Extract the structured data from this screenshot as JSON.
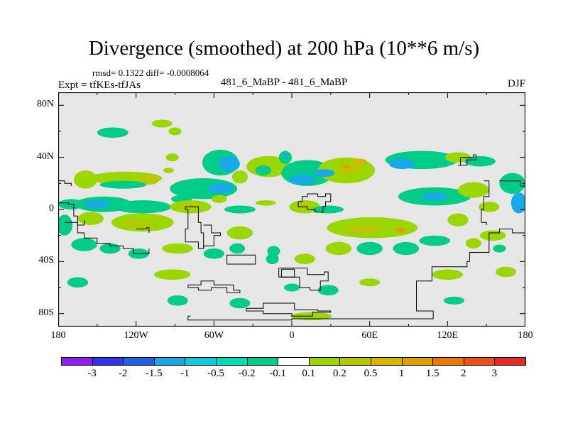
{
  "title": "Divergence (smoothed) at 200 hPa (10**6 m/s)",
  "stats": "rmsd= 0.1322 diff= -0.0008064",
  "expt": "Expt = tfKEs-tfJAs",
  "runs": "481_6_MaBP - 481_6_MaBP",
  "season": "DJF",
  "map": {
    "projection": "cylindrical equidistant",
    "lon_range": [
      -180,
      180
    ],
    "lat_range": [
      -90,
      90
    ],
    "background_color": "#e6e6e6",
    "coastline_color": "#000000",
    "y_ticks": [
      {
        "lat": 80,
        "label": "80N"
      },
      {
        "lat": 40,
        "label": "40N"
      },
      {
        "lat": 0,
        "label": "0"
      },
      {
        "lat": -40,
        "label": "40S"
      },
      {
        "lat": -80,
        "label": "80S"
      }
    ],
    "x_ticks": [
      {
        "lon": -180,
        "label": "180"
      },
      {
        "lon": -120,
        "label": "120W"
      },
      {
        "lon": -60,
        "label": "60W"
      },
      {
        "lon": 0,
        "label": "0"
      },
      {
        "lon": 60,
        "label": "60E"
      },
      {
        "lon": 120,
        "label": "120E"
      },
      {
        "lon": 180,
        "label": "180"
      }
    ],
    "blobs": [
      {
        "lon": -159,
        "lat": 23,
        "rlon": 9,
        "rlat": 7,
        "color": "#9bd600"
      },
      {
        "lon": -128,
        "lat": 24,
        "rlon": 28,
        "rlat": 5,
        "color": "#9bd600"
      },
      {
        "lon": -110,
        "lat": 23,
        "rlon": 8,
        "rlat": 4,
        "color": "#b8c800"
      },
      {
        "lon": -92,
        "lat": 40,
        "rlon": 5,
        "rlat": 3,
        "color": "#9bd600"
      },
      {
        "lon": -130,
        "lat": 19,
        "rlon": 18,
        "rlat": 3,
        "color": "#00cc88"
      },
      {
        "lon": -138,
        "lat": 59,
        "rlon": 12,
        "rlat": 4,
        "color": "#00cc88"
      },
      {
        "lon": -100,
        "lat": 66,
        "rlon": 8,
        "rlat": 3,
        "color": "#9bd600"
      },
      {
        "lon": -90,
        "lat": 60,
        "rlon": 5,
        "rlat": 3,
        "color": "#9bd600"
      },
      {
        "lon": -95,
        "lat": 30,
        "rlon": 4,
        "rlat": 2,
        "color": "#9bd600"
      },
      {
        "lon": -55,
        "lat": 36,
        "rlon": 14,
        "rlat": 10,
        "color": "#00cc88"
      },
      {
        "lon": -48,
        "lat": 35,
        "rlon": 8,
        "rlat": 6,
        "color": "#19a8e8"
      },
      {
        "lon": -68,
        "lat": 16,
        "rlon": 26,
        "rlat": 8,
        "color": "#00cc88"
      },
      {
        "lon": -55,
        "lat": 16,
        "rlon": 10,
        "rlat": 4,
        "color": "#19a8e8"
      },
      {
        "lon": -40,
        "lat": 25,
        "rlon": 6,
        "rlat": 5,
        "color": "#9bd600"
      },
      {
        "lon": -56,
        "lat": 8,
        "rlon": 6,
        "rlat": 3,
        "color": "#9bd600"
      },
      {
        "lon": -18,
        "lat": 33,
        "rlon": 17,
        "rlat": 8,
        "color": "#9bd600"
      },
      {
        "lon": -22,
        "lat": 30,
        "rlon": 6,
        "rlat": 4,
        "color": "#00cc88"
      },
      {
        "lon": -5,
        "lat": 40,
        "rlon": 5,
        "rlat": 5,
        "color": "#00cc88"
      },
      {
        "lon": -5,
        "lat": 41,
        "rlon": 2,
        "rlat": 2,
        "color": "#19a8e8"
      },
      {
        "lon": 12,
        "lat": 28,
        "rlon": 20,
        "rlat": 10,
        "color": "#00cc88"
      },
      {
        "lon": 8,
        "lat": 23,
        "rlon": 10,
        "rlat": 4,
        "color": "#19a8e8"
      },
      {
        "lon": 42,
        "lat": 30,
        "rlon": 22,
        "rlat": 10,
        "color": "#9bd600"
      },
      {
        "lon": 44,
        "lat": 31,
        "rlon": 10,
        "rlat": 4,
        "color": "#b8c800"
      },
      {
        "lon": 52,
        "lat": 37,
        "rlon": 6,
        "rlat": 2,
        "color": "#d4b800"
      },
      {
        "lon": 42,
        "lat": 33,
        "rlon": 3,
        "rlat": 1.5,
        "color": "#e0a000"
      },
      {
        "lon": 100,
        "lat": 38,
        "rlon": 28,
        "rlat": 7,
        "color": "#00cc88"
      },
      {
        "lon": 85,
        "lat": 35,
        "rlon": 10,
        "rlat": 4,
        "color": "#19a8e8"
      },
      {
        "lon": 128,
        "lat": 40,
        "rlon": 10,
        "rlat": 4,
        "color": "#9bd600"
      },
      {
        "lon": 145,
        "lat": 37,
        "rlon": 12,
        "rlat": 4,
        "color": "#00cc88"
      },
      {
        "lon": 110,
        "lat": 10,
        "rlon": 28,
        "rlat": 7,
        "color": "#00cc88"
      },
      {
        "lon": 110,
        "lat": 10,
        "rlon": 10,
        "rlat": 3,
        "color": "#19a8e8"
      },
      {
        "lon": 140,
        "lat": 15,
        "rlon": 12,
        "rlat": 6,
        "color": "#9bd600"
      },
      {
        "lon": 152,
        "lat": 2,
        "rlon": 8,
        "rlat": 4,
        "color": "#9bd600"
      },
      {
        "lon": 170,
        "lat": 20,
        "rlon": 10,
        "rlat": 8,
        "color": "#00cc88"
      },
      {
        "lon": 175,
        "lat": 5,
        "rlon": 6,
        "rlat": 8,
        "color": "#19a8e8"
      },
      {
        "lon": -170,
        "lat": 4,
        "rlon": 10,
        "rlat": 4,
        "color": "#00cc88"
      },
      {
        "lon": -145,
        "lat": 4,
        "rlon": 22,
        "rlat": 6,
        "color": "#00cc88"
      },
      {
        "lon": -150,
        "lat": 4,
        "rlon": 10,
        "rlat": 3,
        "color": "#19a8e8"
      },
      {
        "lon": -115,
        "lat": 2,
        "rlon": 22,
        "rlat": 5,
        "color": "#00cc88"
      },
      {
        "lon": -85,
        "lat": 8,
        "rlon": 8,
        "rlat": 3,
        "color": "#00cc88"
      },
      {
        "lon": -155,
        "lat": -7,
        "rlon": 10,
        "rlat": 5,
        "color": "#9bd600"
      },
      {
        "lon": -115,
        "lat": -10,
        "rlon": 24,
        "rlat": 7,
        "color": "#9bd600"
      },
      {
        "lon": -118,
        "lat": -11,
        "rlon": 12,
        "rlat": 3,
        "color": "#b8c800"
      },
      {
        "lon": -78,
        "lat": 2,
        "rlon": 16,
        "rlat": 5,
        "color": "#9bd600"
      },
      {
        "lon": -80,
        "lat": 3,
        "rlon": 8,
        "rlat": 2.5,
        "color": "#b8c800"
      },
      {
        "lon": -40,
        "lat": 0,
        "rlon": 12,
        "rlat": 3,
        "color": "#00cc88"
      },
      {
        "lon": -20,
        "lat": 5,
        "rlon": 8,
        "rlat": 2,
        "color": "#9bd600"
      },
      {
        "lon": 10,
        "lat": 2,
        "rlon": 12,
        "rlat": 5,
        "color": "#9bd600"
      },
      {
        "lon": 8,
        "lat": 3,
        "rlon": 6,
        "rlat": 2,
        "color": "#b8c800"
      },
      {
        "lon": 28,
        "lat": 0,
        "rlon": 12,
        "rlat": 3,
        "color": "#00cc88"
      },
      {
        "lon": 62,
        "lat": -14,
        "rlon": 35,
        "rlat": 8,
        "color": "#9bd600"
      },
      {
        "lon": 55,
        "lat": -15,
        "rlon": 14,
        "rlat": 3.5,
        "color": "#b8c800"
      },
      {
        "lon": 84,
        "lat": -16,
        "rlon": 4,
        "rlat": 2,
        "color": "#e0a000"
      },
      {
        "lon": 60,
        "lat": -30,
        "rlon": 10,
        "rlat": 5,
        "color": "#00cc88"
      },
      {
        "lon": 88,
        "lat": -30,
        "rlon": 10,
        "rlat": 5,
        "color": "#00cc88"
      },
      {
        "lon": 110,
        "lat": -24,
        "rlon": 12,
        "rlat": 4,
        "color": "#00cc88"
      },
      {
        "lon": 128,
        "lat": -8,
        "rlon": 8,
        "rlat": 5,
        "color": "#9bd600"
      },
      {
        "lon": 140,
        "lat": -26,
        "rlon": 6,
        "rlat": 4,
        "color": "#9bd600"
      },
      {
        "lon": 155,
        "lat": -20,
        "rlon": 10,
        "rlat": 4,
        "color": "#9bd600"
      },
      {
        "lon": 160,
        "lat": -30,
        "rlon": 5,
        "rlat": 3,
        "color": "#00cc88"
      },
      {
        "lon": 36,
        "lat": -30,
        "rlon": 10,
        "rlat": 5,
        "color": "#9bd600"
      },
      {
        "lon": 10,
        "lat": -38,
        "rlon": 8,
        "rlat": 4,
        "color": "#9bd600"
      },
      {
        "lon": -14,
        "lat": -32,
        "rlon": 5,
        "rlat": 4,
        "color": "#00cc88"
      },
      {
        "lon": -15,
        "lat": -38,
        "rlon": 5,
        "rlat": 4,
        "color": "#00cc88"
      },
      {
        "lon": -40,
        "lat": -18,
        "rlon": 10,
        "rlat": 5,
        "color": "#9bd600"
      },
      {
        "lon": -42,
        "lat": -30,
        "rlon": 6,
        "rlat": 4,
        "color": "#00cc88"
      },
      {
        "lon": -60,
        "lat": -34,
        "rlon": 8,
        "rlat": 4,
        "color": "#00cc88"
      },
      {
        "lon": -88,
        "lat": -30,
        "rlon": 12,
        "rlat": 4,
        "color": "#9bd600"
      },
      {
        "lon": -118,
        "lat": -34,
        "rlon": 8,
        "rlat": 4,
        "color": "#00cc88"
      },
      {
        "lon": -140,
        "lat": -30,
        "rlon": 8,
        "rlat": 4,
        "color": "#00cc88"
      },
      {
        "lon": -160,
        "lat": -27,
        "rlon": 10,
        "rlat": 5,
        "color": "#00cc88"
      },
      {
        "lon": -175,
        "lat": -12,
        "rlon": 6,
        "rlat": 8,
        "color": "#00cc88"
      },
      {
        "lon": -92,
        "lat": -50,
        "rlon": 14,
        "rlat": 4,
        "color": "#9bd600"
      },
      {
        "lon": -88,
        "lat": -70,
        "rlon": 8,
        "rlat": 4,
        "color": "#00cc88"
      },
      {
        "lon": -40,
        "lat": -72,
        "rlon": 8,
        "rlat": 4,
        "color": "#00cc88"
      },
      {
        "lon": 0,
        "lat": -60,
        "rlon": 6,
        "rlat": 3,
        "color": "#00cc88"
      },
      {
        "lon": 28,
        "lat": -62,
        "rlon": 8,
        "rlat": 4,
        "color": "#00cc88"
      },
      {
        "lon": 60,
        "lat": -56,
        "rlon": 8,
        "rlat": 3,
        "color": "#9bd600"
      },
      {
        "lon": 120,
        "lat": -50,
        "rlon": 12,
        "rlat": 4,
        "color": "#9bd600"
      },
      {
        "lon": 165,
        "lat": -48,
        "rlon": 8,
        "rlat": 4,
        "color": "#9bd600"
      },
      {
        "lon": 125,
        "lat": -70,
        "rlon": 8,
        "rlat": 3,
        "color": "#00cc88"
      },
      {
        "lon": 15,
        "lat": -82,
        "rlon": 16,
        "rlat": 3,
        "color": "#9bd600"
      },
      {
        "lon": -165,
        "lat": -56,
        "rlon": 8,
        "rlat": 4,
        "color": "#00cc88"
      },
      {
        "lon": -110,
        "lat": -8,
        "rlon": 6,
        "rlat": 2,
        "color": "#9bd600"
      },
      {
        "lon": 25,
        "lat": 28,
        "rlon": 8,
        "rlat": 3,
        "color": "#19a8e8"
      }
    ],
    "coastlines": [
      [
        [
          -180,
          5
        ],
        [
          -172,
          4
        ],
        [
          -168,
          -5
        ],
        [
          -165,
          -18
        ],
        [
          -160,
          -22
        ],
        [
          -150,
          -26
        ],
        [
          -140,
          -28
        ],
        [
          -130,
          -30
        ],
        [
          -122,
          -34
        ],
        [
          -110,
          -30
        ]
      ],
      [
        [
          -82,
          0
        ],
        [
          -80,
          -15
        ],
        [
          -82,
          -25
        ],
        [
          -72,
          -30
        ],
        [
          -68,
          -30
        ],
        [
          -68,
          -18
        ],
        [
          -70,
          -10
        ],
        [
          -72,
          2
        ],
        [
          -82,
          0
        ]
      ],
      [
        [
          -68,
          -12
        ],
        [
          -62,
          -18
        ],
        [
          -55,
          -20
        ],
        [
          -60,
          -28
        ],
        [
          -68,
          -30
        ]
      ],
      [
        [
          -50,
          -42
        ],
        [
          -28,
          -42
        ],
        [
          -28,
          -35
        ],
        [
          -40,
          -35
        ],
        [
          -50,
          -42
        ]
      ],
      [
        [
          -8,
          -46
        ],
        [
          -8,
          -52
        ],
        [
          2,
          -52
        ],
        [
          2,
          -46
        ],
        [
          -8,
          -46
        ]
      ],
      [
        [
          -10,
          -45
        ],
        [
          8,
          -45
        ],
        [
          12,
          -50
        ],
        [
          25,
          -48
        ],
        [
          28,
          -55
        ],
        [
          22,
          -62
        ],
        [
          14,
          -60
        ],
        [
          6,
          -52
        ],
        [
          -10,
          -45
        ]
      ],
      [
        [
          -10,
          -72
        ],
        [
          2,
          -72
        ],
        [
          2,
          -77
        ],
        [
          10,
          -77
        ],
        [
          20,
          -78
        ],
        [
          30,
          -79
        ],
        [
          16,
          -82
        ],
        [
          0,
          -80
        ],
        [
          -22,
          -78
        ],
        [
          -35,
          -76
        ],
        [
          -22,
          -72
        ],
        [
          -10,
          -72
        ]
      ],
      [
        [
          -78,
          -82
        ],
        [
          -80,
          -85
        ],
        [
          -40,
          -85
        ],
        [
          0,
          -84
        ],
        [
          60,
          -84
        ],
        [
          109,
          -83
        ],
        [
          109,
          -78
        ],
        [
          96,
          -78
        ],
        [
          96,
          -55
        ],
        [
          108,
          -55
        ],
        [
          108,
          -44
        ],
        [
          135,
          -40
        ],
        [
          137,
          -33
        ],
        [
          152,
          -18
        ],
        [
          160,
          -15
        ],
        [
          170,
          -18
        ],
        [
          180,
          -12
        ]
      ],
      [
        [
          -80,
          -60
        ],
        [
          -72,
          -62
        ],
        [
          -62,
          -60
        ],
        [
          -50,
          -64
        ],
        [
          -40,
          -62
        ],
        [
          -45,
          -58
        ],
        [
          -60,
          -55
        ],
        [
          -70,
          -58
        ],
        [
          -80,
          -60
        ]
      ],
      [
        [
          5,
          6
        ],
        [
          8,
          10
        ],
        [
          12,
          12
        ],
        [
          20,
          10
        ],
        [
          26,
          12
        ],
        [
          30,
          6
        ],
        [
          26,
          2
        ],
        [
          24,
          -2
        ],
        [
          18,
          0
        ],
        [
          12,
          2
        ],
        [
          5,
          6
        ]
      ],
      [
        [
          -175,
          -10
        ],
        [
          -165,
          -12
        ],
        [
          -160,
          -8
        ]
      ],
      [
        [
          130,
          40
        ],
        [
          140,
          42
        ],
        [
          142,
          38
        ],
        [
          135,
          34
        ],
        [
          128,
          34
        ],
        [
          130,
          40
        ]
      ],
      [
        [
          148,
          22
        ],
        [
          152,
          10
        ],
        [
          148,
          0
        ],
        [
          146,
          -10
        ],
        [
          150,
          -12
        ]
      ],
      [
        [
          160,
          22
        ],
        [
          168,
          22
        ],
        [
          176,
          18
        ],
        [
          180,
          20
        ]
      ],
      [
        [
          -120,
          -15
        ],
        [
          -112,
          -14
        ],
        [
          -110,
          -18
        ]
      ],
      [
        [
          -180,
          22
        ],
        [
          -175,
          20
        ],
        [
          -170,
          18
        ]
      ]
    ]
  },
  "colorbar": {
    "colors": [
      "#8c1ef0",
      "#3232e6",
      "#1e64e6",
      "#19a8e8",
      "#14c8dc",
      "#00dcb4",
      "#00cc88",
      "#ffffff",
      "#9bd600",
      "#b8c800",
      "#d4b800",
      "#e0a000",
      "#ea7800",
      "#ec5014",
      "#e62828"
    ],
    "labels": [
      "-3",
      "-2",
      "-1.5",
      "-1",
      "-0.5",
      "-0.2",
      "-0.1",
      "0.1",
      "0.2",
      "0.5",
      "1",
      "1.5",
      "2",
      "3"
    ]
  }
}
